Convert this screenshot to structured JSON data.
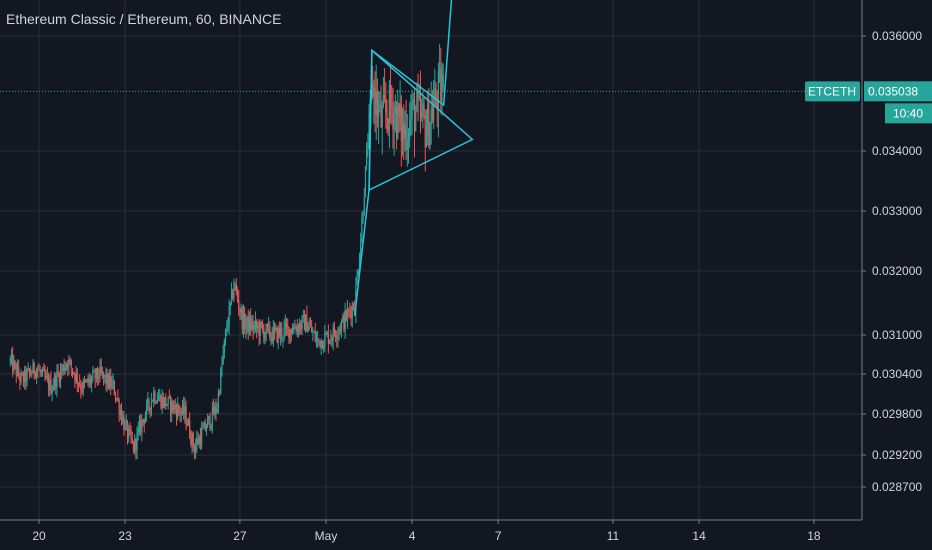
{
  "header": {
    "title": "Ethereum Classic / Ethereum, 60, BINANCE"
  },
  "colors": {
    "background": "#131722",
    "grid": "#2a2e39",
    "up": "#26a69a",
    "down": "#ef5350",
    "pattern": "#26c6da",
    "price_line": "#26a69a",
    "text": "#d1d4dc"
  },
  "price_badge": {
    "symbol": "ETCETH",
    "price": "0.035038",
    "countdown": "10:40",
    "value": 0.035038
  },
  "chart_data": {
    "type": "candlestick",
    "symbol": "ETCETH",
    "exchange": "BINANCE",
    "interval": "60",
    "grid": true,
    "y_ticks": [
      {
        "label": "0.036000",
        "value": 0.036
      },
      {
        "label": "0.034000",
        "value": 0.034
      },
      {
        "label": "0.033000",
        "value": 0.033
      },
      {
        "label": "0.032000",
        "value": 0.032
      },
      {
        "label": "0.031000",
        "value": 0.031
      },
      {
        "label": "0.030400",
        "value": 0.0304
      },
      {
        "label": "0.029800",
        "value": 0.0298
      },
      {
        "label": "0.029200",
        "value": 0.0292
      },
      {
        "label": "0.028700",
        "value": 0.0287
      }
    ],
    "x_ticks": [
      {
        "label": "20",
        "day": 20
      },
      {
        "label": "23",
        "day": 23
      },
      {
        "label": "27",
        "day": 27
      },
      {
        "label": "May",
        "day": 30
      },
      {
        "label": "4",
        "day": 33
      },
      {
        "label": "7",
        "day": 36
      },
      {
        "label": "11",
        "day": 40
      },
      {
        "label": "14",
        "day": 43
      },
      {
        "label": "18",
        "day": 47
      }
    ],
    "price_path": [
      {
        "day": 19.0,
        "price": 0.0306
      },
      {
        "day": 19.4,
        "price": 0.0303
      },
      {
        "day": 19.9,
        "price": 0.0305
      },
      {
        "day": 20.4,
        "price": 0.0302
      },
      {
        "day": 21.0,
        "price": 0.0306
      },
      {
        "day": 21.5,
        "price": 0.0302
      },
      {
        "day": 22.1,
        "price": 0.0304
      },
      {
        "day": 22.6,
        "price": 0.0302
      },
      {
        "day": 23.0,
        "price": 0.0296
      },
      {
        "day": 23.3,
        "price": 0.0293
      },
      {
        "day": 23.6,
        "price": 0.0297
      },
      {
        "day": 24.0,
        "price": 0.0301
      },
      {
        "day": 24.3,
        "price": 0.03
      },
      {
        "day": 24.7,
        "price": 0.0299
      },
      {
        "day": 25.1,
        "price": 0.0298
      },
      {
        "day": 25.4,
        "price": 0.0293
      },
      {
        "day": 25.8,
        "price": 0.0296
      },
      {
        "day": 26.2,
        "price": 0.0299
      },
      {
        "day": 26.5,
        "price": 0.031
      },
      {
        "day": 26.8,
        "price": 0.0318
      },
      {
        "day": 27.1,
        "price": 0.0312
      },
      {
        "day": 27.6,
        "price": 0.0311
      },
      {
        "day": 28.2,
        "price": 0.031
      },
      {
        "day": 28.8,
        "price": 0.0311
      },
      {
        "day": 29.3,
        "price": 0.0312
      },
      {
        "day": 29.7,
        "price": 0.0309
      },
      {
        "day": 30.2,
        "price": 0.031
      },
      {
        "day": 30.6,
        "price": 0.0312
      },
      {
        "day": 31.0,
        "price": 0.0315
      },
      {
        "day": 31.2,
        "price": 0.0325
      },
      {
        "day": 31.4,
        "price": 0.0338
      },
      {
        "day": 31.6,
        "price": 0.0352
      },
      {
        "day": 31.9,
        "price": 0.0345
      },
      {
        "day": 32.3,
        "price": 0.0348
      },
      {
        "day": 32.7,
        "price": 0.0343
      },
      {
        "day": 33.1,
        "price": 0.0347
      },
      {
        "day": 33.5,
        "price": 0.0344
      },
      {
        "day": 33.9,
        "price": 0.035
      },
      {
        "day": 34.1,
        "price": 0.0351
      }
    ],
    "pattern": {
      "name": "symmetrical-triangle",
      "top": {
        "day": 31.6,
        "price": 0.03575
      },
      "bottom": {
        "day": 31.5,
        "price": 0.03335
      },
      "apex": {
        "day": 35.1,
        "price": 0.0342
      }
    },
    "breakout_line": [
      {
        "day": 31.0,
        "price": 0.0313
      },
      {
        "day": 31.5,
        "price": 0.03335
      },
      {
        "day": 31.6,
        "price": 0.03575
      },
      {
        "day": 34.1,
        "price": 0.0348
      },
      {
        "day": 34.5,
        "price": 0.0375
      }
    ]
  }
}
